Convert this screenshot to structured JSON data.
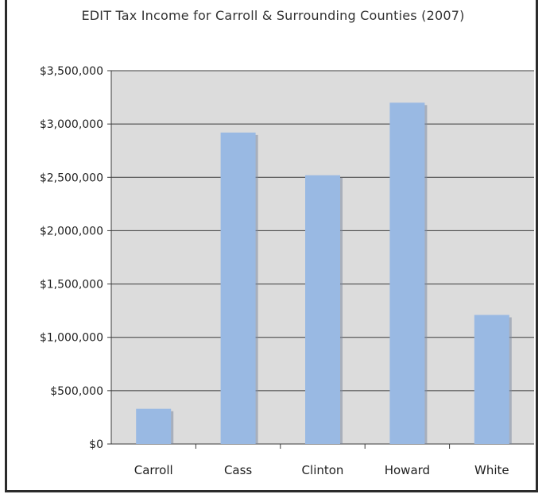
{
  "chart_data": {
    "type": "bar",
    "title": "EDIT Tax Income for Carroll & Surrounding Counties (2007)",
    "categories": [
      "Carroll",
      "Cass",
      "Clinton",
      "Howard",
      "White"
    ],
    "values": [
      330000,
      2920000,
      2520000,
      3200000,
      1210000
    ],
    "ylim": [
      0,
      3500000
    ],
    "yticks": [
      0,
      500000,
      1000000,
      1500000,
      2000000,
      2500000,
      3000000,
      3500000
    ],
    "ytick_labels": [
      "$0",
      "$500,000",
      "$1,000,000",
      "$1,500,000",
      "$2,000,000",
      "$2,500,000",
      "$3,000,000",
      "$3,500,000"
    ],
    "grid": true,
    "legend": "none",
    "colors": {
      "bar": "#99b9e3",
      "bar_shadow": "#7d8aa0",
      "plot_background": "#dcdcdc",
      "gridline": "#3a3a3a"
    }
  }
}
